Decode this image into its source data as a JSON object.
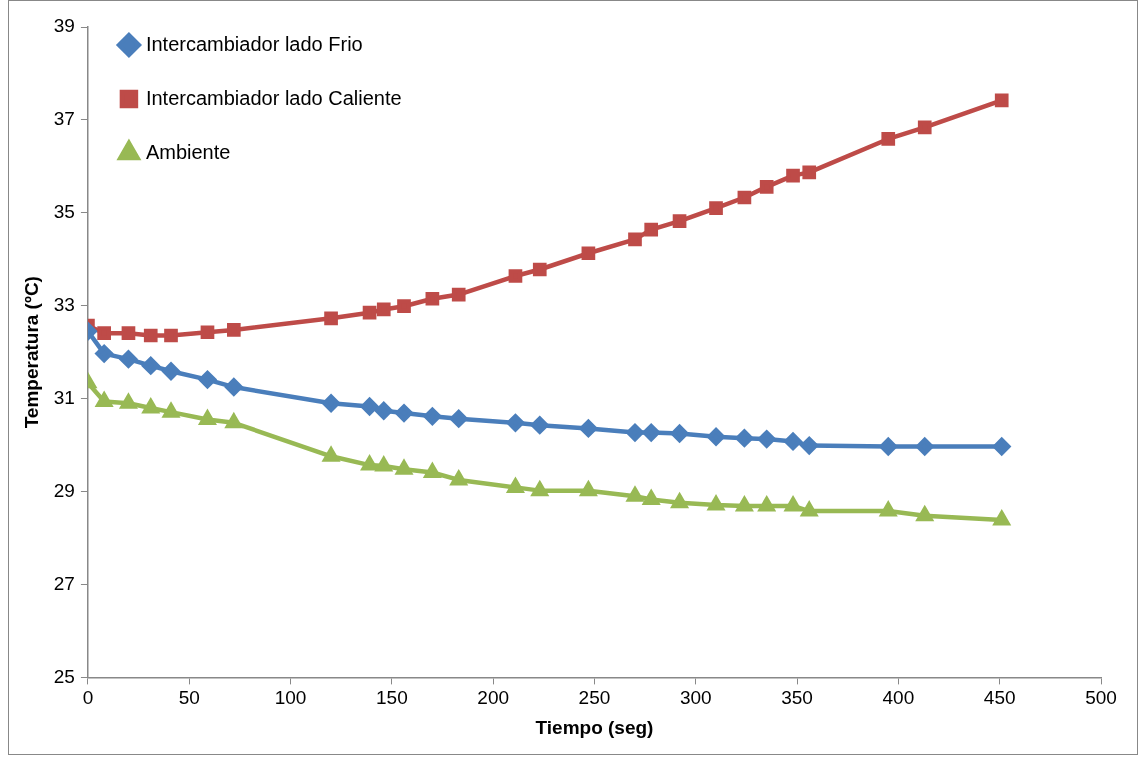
{
  "chart_data": {
    "type": "line",
    "xlabel": "Tiempo (seg)",
    "ylabel": "Temperatura (ºC)",
    "x": [
      0,
      8,
      20,
      31,
      41,
      59,
      72,
      120,
      139,
      146,
      156,
      170,
      183,
      211,
      223,
      247,
      270,
      278,
      292,
      310,
      324,
      335,
      348,
      356,
      395,
      413,
      451
    ],
    "series": [
      {
        "name": "Intercambiador lado Frio",
        "color": "#4a7ebb",
        "marker": "diamond",
        "values": [
          32.45,
          31.97,
          31.85,
          31.71,
          31.59,
          31.41,
          31.25,
          30.9,
          30.83,
          30.74,
          30.69,
          30.62,
          30.57,
          30.48,
          30.43,
          30.36,
          30.27,
          30.27,
          30.25,
          30.18,
          30.15,
          30.13,
          30.08,
          29.99,
          29.97,
          29.97,
          29.97
        ]
      },
      {
        "name": "Intercambiador lado Caliente",
        "color": "#be4b48",
        "marker": "square",
        "values": [
          32.57,
          32.41,
          32.41,
          32.36,
          32.36,
          32.43,
          32.48,
          32.73,
          32.85,
          32.92,
          32.99,
          33.15,
          33.24,
          33.64,
          33.78,
          34.13,
          34.43,
          34.64,
          34.82,
          35.1,
          35.33,
          35.56,
          35.8,
          35.87,
          36.59,
          36.84,
          37.42
        ]
      },
      {
        "name": "Ambiente",
        "color": "#98b954",
        "marker": "triangle",
        "values": [
          31.34,
          30.94,
          30.9,
          30.8,
          30.71,
          30.55,
          30.48,
          29.76,
          29.57,
          29.55,
          29.48,
          29.41,
          29.25,
          29.09,
          29.02,
          29.02,
          28.9,
          28.83,
          28.76,
          28.71,
          28.69,
          28.69,
          28.69,
          28.58,
          28.58,
          28.48,
          28.39
        ]
      }
    ],
    "xlim": [
      0,
      500
    ],
    "xticks": [
      0,
      50,
      100,
      150,
      200,
      250,
      300,
      350,
      400,
      450,
      500
    ],
    "ylim": [
      25,
      39
    ],
    "yticks": [
      25,
      27,
      29,
      31,
      33,
      35,
      37,
      39
    ],
    "grid": false,
    "legend": "top left",
    "line_style": "solid"
  }
}
